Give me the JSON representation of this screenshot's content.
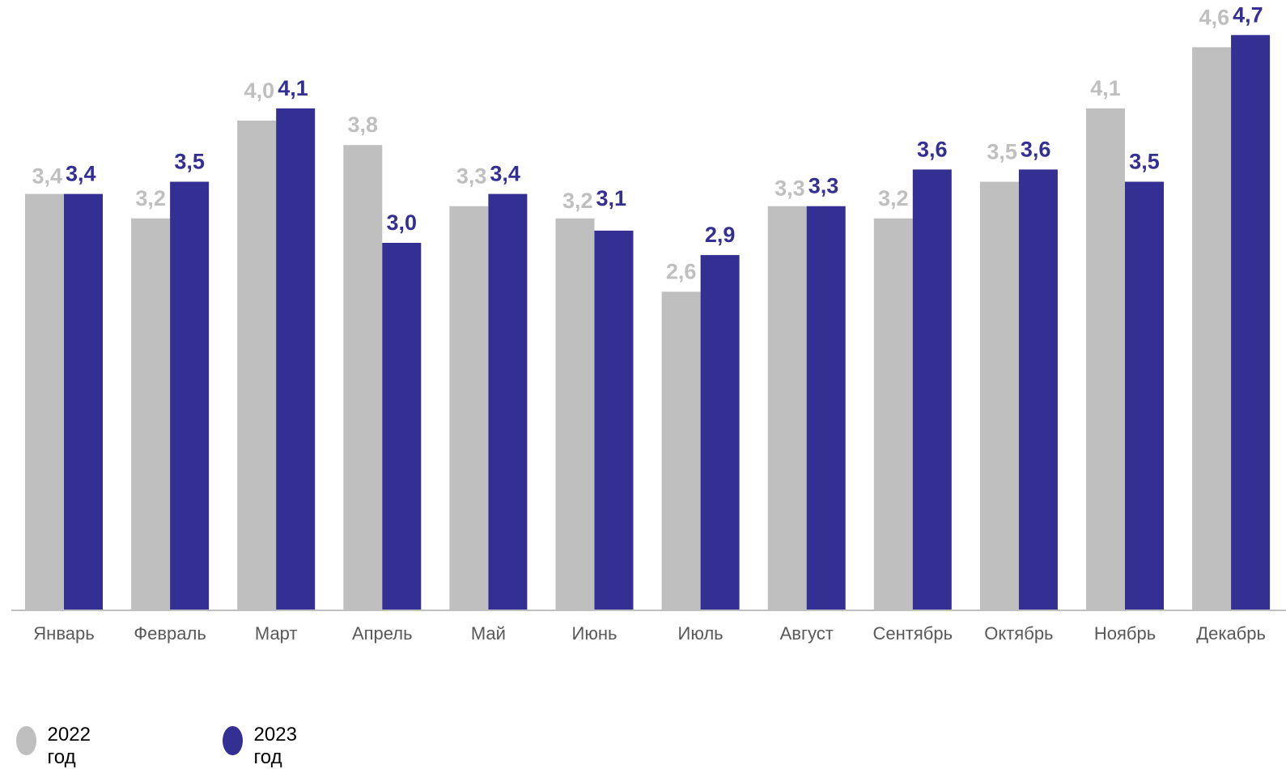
{
  "chart_data": {
    "type": "bar",
    "title": "",
    "xlabel": "",
    "ylabel": "",
    "ylim": [
      0,
      4.9
    ],
    "grid": false,
    "legend_position": "bottom-left",
    "categories": [
      "Январь",
      "Февраль",
      "Март",
      "Апрель",
      "Май",
      "Июнь",
      "Июль",
      "Август",
      "Сентябрь",
      "Октябрь",
      "Ноябрь",
      "Декабрь"
    ],
    "series": [
      {
        "name": "2022 год",
        "color": "#bfbfbf",
        "values": [
          3.4,
          3.2,
          4.0,
          3.8,
          3.3,
          3.2,
          2.6,
          3.3,
          3.2,
          3.5,
          4.1,
          4.6
        ],
        "labels": [
          "3,4",
          "3,2",
          "4,0",
          "3,8",
          "3,3",
          "3,2",
          "2,6",
          "3,3",
          "3,2",
          "3,5",
          "4,1",
          "4,6"
        ]
      },
      {
        "name": "2023 год",
        "color": "#342f93",
        "values": [
          3.4,
          3.5,
          4.1,
          3.0,
          3.4,
          3.1,
          2.9,
          3.3,
          3.6,
          3.6,
          3.5,
          4.7
        ],
        "labels": [
          "3,4",
          "3,5",
          "4,1",
          "3,0",
          "3,4",
          "3,1",
          "2,9",
          "3,3",
          "3,6",
          "3,6",
          "3,5",
          "4,7"
        ]
      }
    ]
  },
  "legend": {
    "item_2022": "2022 год",
    "item_2023": "2023 год"
  },
  "colors": {
    "series_2022": "#bfbfbf",
    "series_2023": "#342f93",
    "axis": "#bfbfbf",
    "category_text": "#595959",
    "label_2022_text": "#bfbfbf",
    "label_2023_text": "#342f93"
  }
}
